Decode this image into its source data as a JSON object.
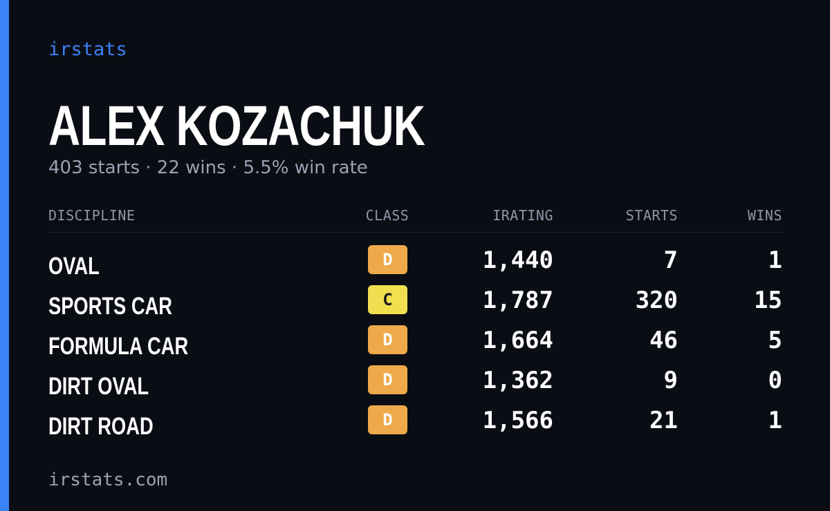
{
  "brand": "irstats",
  "driver": {
    "name": "ALEX KOZACHUK",
    "summary": "403 starts · 22 wins · 5.5% win rate"
  },
  "table": {
    "headers": {
      "discipline": "DISCIPLINE",
      "class": "CLASS",
      "irating": "IRATING",
      "starts": "STARTS",
      "wins": "WINS"
    },
    "rows": [
      {
        "discipline": "OVAL",
        "class": "D",
        "irating": "1,440",
        "starts": "7",
        "wins": "1"
      },
      {
        "discipline": "SPORTS CAR",
        "class": "C",
        "irating": "1,787",
        "starts": "320",
        "wins": "15"
      },
      {
        "discipline": "FORMULA CAR",
        "class": "D",
        "irating": "1,664",
        "starts": "46",
        "wins": "5"
      },
      {
        "discipline": "DIRT OVAL",
        "class": "D",
        "irating": "1,362",
        "starts": "9",
        "wins": "0"
      },
      {
        "discipline": "DIRT ROAD",
        "class": "D",
        "irating": "1,566",
        "starts": "21",
        "wins": "1"
      }
    ]
  },
  "class_colors": {
    "C": {
      "bg": "#f0e050",
      "fg": "#1a1a1a"
    },
    "D": {
      "bg": "#eeaa4a",
      "fg": "#ffffff"
    }
  },
  "colors": {
    "accent": "#3b82f6",
    "background": "#0a0d14"
  },
  "footer": "irstats.com"
}
